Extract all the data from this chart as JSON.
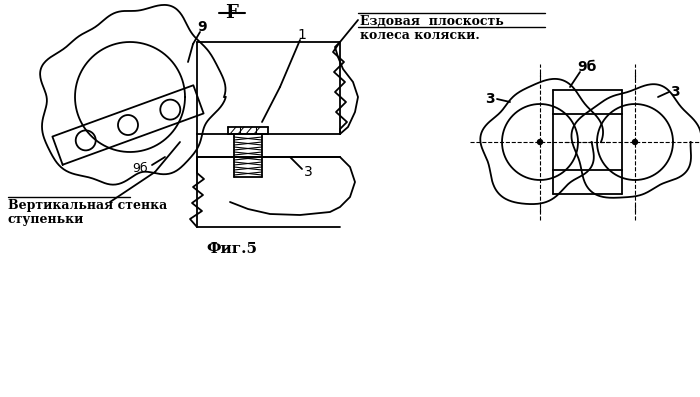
{
  "title": "F",
  "fig_label": "Фиг.5",
  "label_ezdovaya_1": "Ездовая  плоскость",
  "label_ezdovaya_2": "колеса коляски.",
  "label_vert_1": "Вертикальная стенка",
  "label_vert_2": "ступеньки",
  "bg_color": "#ffffff",
  "lw": 1.3
}
